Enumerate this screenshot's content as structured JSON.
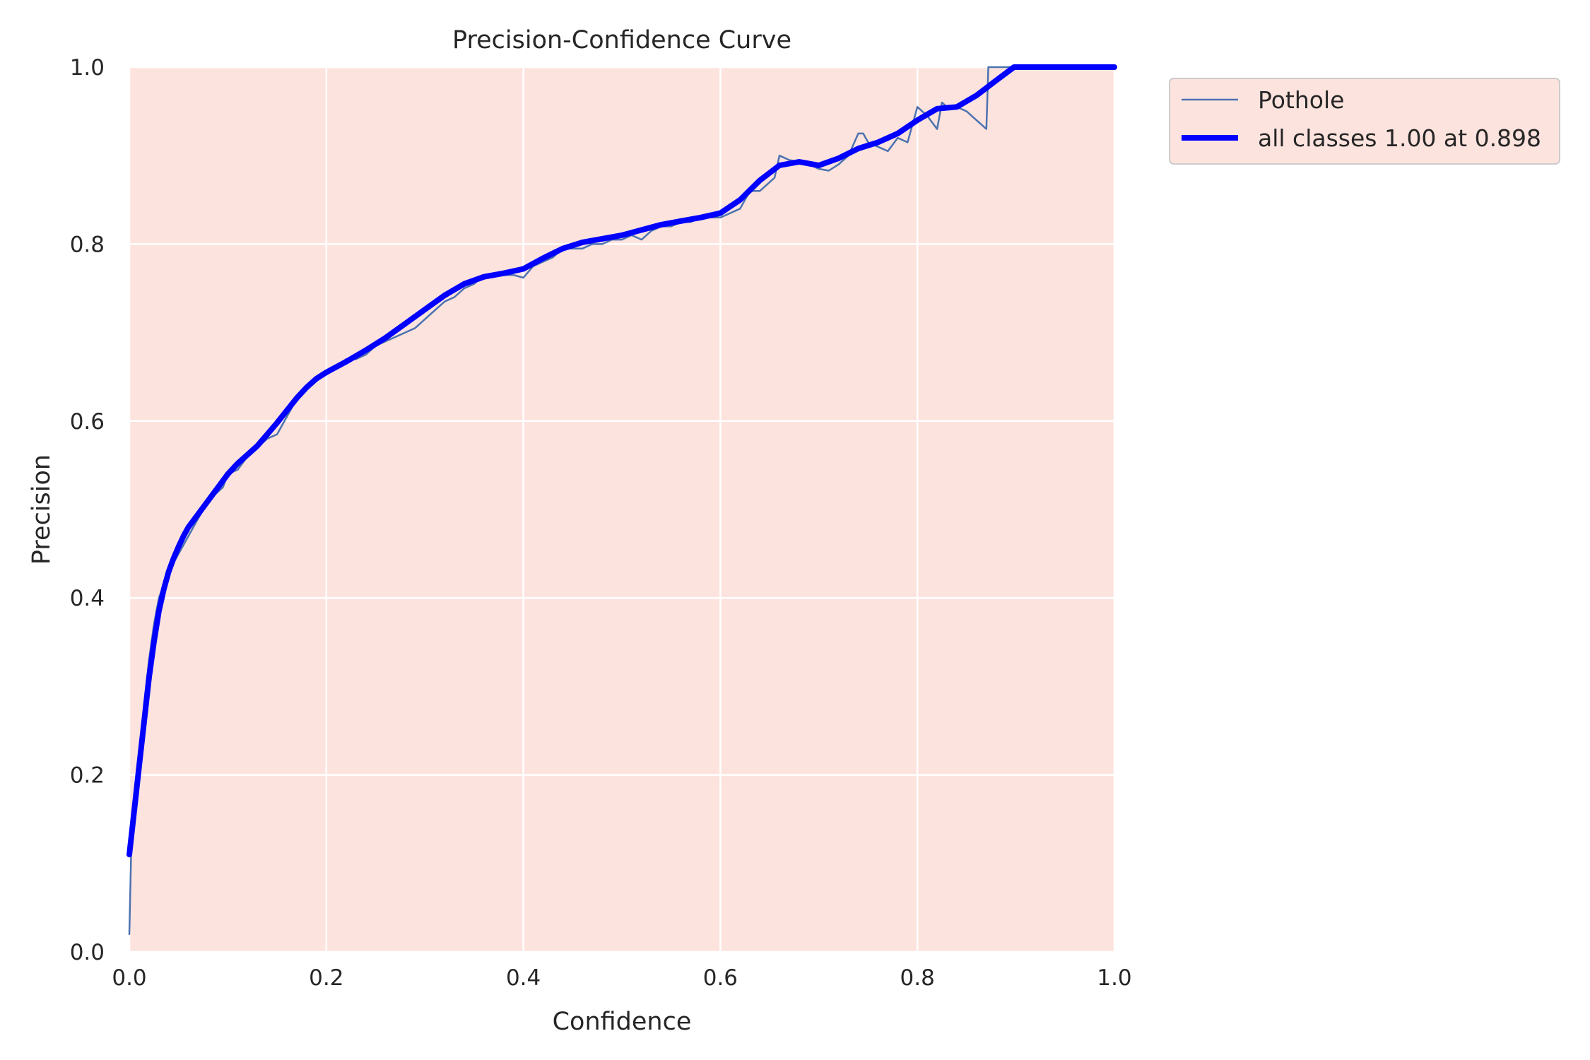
{
  "chart_data": {
    "type": "line",
    "title": "Precision-Confidence Curve",
    "xlabel": "Confidence",
    "ylabel": "Precision",
    "xlim": [
      0,
      1
    ],
    "ylim": [
      0,
      1
    ],
    "xticks": [
      "0.0",
      "0.2",
      "0.4",
      "0.6",
      "0.8",
      "1.0"
    ],
    "yticks": [
      "0.0",
      "0.2",
      "0.4",
      "0.6",
      "0.8",
      "1.0"
    ],
    "grid": true,
    "legend_position": "outside top-right",
    "colors": {
      "plot_background": "#fde3de",
      "grid": "#ffffff",
      "pothole": "#4c72b0",
      "all_classes": "#0000ff"
    },
    "series": [
      {
        "name": "Pothole",
        "x": [
          0.0,
          0.002,
          0.005,
          0.01,
          0.015,
          0.02,
          0.025,
          0.03,
          0.035,
          0.04,
          0.045,
          0.05,
          0.055,
          0.06,
          0.07,
          0.08,
          0.09,
          0.095,
          0.1,
          0.11,
          0.12,
          0.13,
          0.14,
          0.15,
          0.16,
          0.17,
          0.18,
          0.19,
          0.2,
          0.21,
          0.22,
          0.23,
          0.24,
          0.25,
          0.26,
          0.27,
          0.28,
          0.29,
          0.3,
          0.31,
          0.32,
          0.33,
          0.34,
          0.35,
          0.36,
          0.37,
          0.38,
          0.39,
          0.4,
          0.41,
          0.42,
          0.43,
          0.44,
          0.45,
          0.46,
          0.47,
          0.48,
          0.49,
          0.5,
          0.51,
          0.52,
          0.53,
          0.54,
          0.55,
          0.56,
          0.57,
          0.58,
          0.59,
          0.6,
          0.61,
          0.62,
          0.63,
          0.64,
          0.65,
          0.655,
          0.66,
          0.67,
          0.68,
          0.69,
          0.7,
          0.71,
          0.72,
          0.73,
          0.74,
          0.745,
          0.75,
          0.76,
          0.77,
          0.78,
          0.79,
          0.8,
          0.81,
          0.82,
          0.825,
          0.83,
          0.84,
          0.85,
          0.86,
          0.87,
          0.872,
          0.88,
          0.89,
          0.9,
          0.95,
          1.0
        ],
        "y": [
          0.02,
          0.12,
          0.16,
          0.22,
          0.28,
          0.33,
          0.37,
          0.4,
          0.415,
          0.43,
          0.44,
          0.45,
          0.46,
          0.47,
          0.49,
          0.51,
          0.52,
          0.525,
          0.54,
          0.545,
          0.56,
          0.57,
          0.58,
          0.585,
          0.605,
          0.625,
          0.64,
          0.65,
          0.655,
          0.66,
          0.67,
          0.67,
          0.675,
          0.685,
          0.69,
          0.695,
          0.7,
          0.705,
          0.715,
          0.725,
          0.735,
          0.74,
          0.75,
          0.755,
          0.765,
          0.765,
          0.765,
          0.765,
          0.762,
          0.775,
          0.78,
          0.785,
          0.795,
          0.795,
          0.795,
          0.8,
          0.8,
          0.805,
          0.805,
          0.81,
          0.805,
          0.815,
          0.82,
          0.82,
          0.825,
          0.825,
          0.83,
          0.83,
          0.83,
          0.835,
          0.84,
          0.86,
          0.86,
          0.87,
          0.875,
          0.9,
          0.895,
          0.893,
          0.89,
          0.885,
          0.883,
          0.89,
          0.9,
          0.925,
          0.925,
          0.915,
          0.91,
          0.905,
          0.92,
          0.915,
          0.955,
          0.945,
          0.93,
          0.96,
          0.955,
          0.955,
          0.95,
          0.94,
          0.93,
          1.0,
          1.0,
          1.0,
          1.0,
          1.0,
          1.0
        ]
      },
      {
        "name": "all classes 1.00 at 0.898",
        "x": [
          0.0,
          0.005,
          0.01,
          0.015,
          0.02,
          0.025,
          0.03,
          0.035,
          0.04,
          0.045,
          0.05,
          0.055,
          0.06,
          0.07,
          0.08,
          0.09,
          0.1,
          0.11,
          0.12,
          0.13,
          0.14,
          0.15,
          0.16,
          0.17,
          0.18,
          0.19,
          0.2,
          0.22,
          0.24,
          0.26,
          0.28,
          0.3,
          0.32,
          0.34,
          0.36,
          0.38,
          0.4,
          0.42,
          0.44,
          0.46,
          0.48,
          0.5,
          0.52,
          0.54,
          0.56,
          0.58,
          0.6,
          0.62,
          0.64,
          0.66,
          0.68,
          0.7,
          0.72,
          0.74,
          0.76,
          0.78,
          0.8,
          0.82,
          0.84,
          0.86,
          0.88,
          0.898,
          0.95,
          1.0
        ],
        "y": [
          0.11,
          0.16,
          0.21,
          0.26,
          0.31,
          0.35,
          0.385,
          0.41,
          0.43,
          0.445,
          0.458,
          0.47,
          0.48,
          0.495,
          0.51,
          0.525,
          0.54,
          0.552,
          0.562,
          0.572,
          0.585,
          0.598,
          0.612,
          0.626,
          0.638,
          0.648,
          0.655,
          0.667,
          0.68,
          0.694,
          0.71,
          0.726,
          0.742,
          0.755,
          0.763,
          0.767,
          0.772,
          0.784,
          0.795,
          0.802,
          0.806,
          0.81,
          0.816,
          0.822,
          0.826,
          0.83,
          0.835,
          0.85,
          0.872,
          0.889,
          0.893,
          0.889,
          0.897,
          0.908,
          0.915,
          0.925,
          0.94,
          0.953,
          0.955,
          0.968,
          0.985,
          1.0,
          1.0,
          1.0
        ]
      }
    ]
  }
}
